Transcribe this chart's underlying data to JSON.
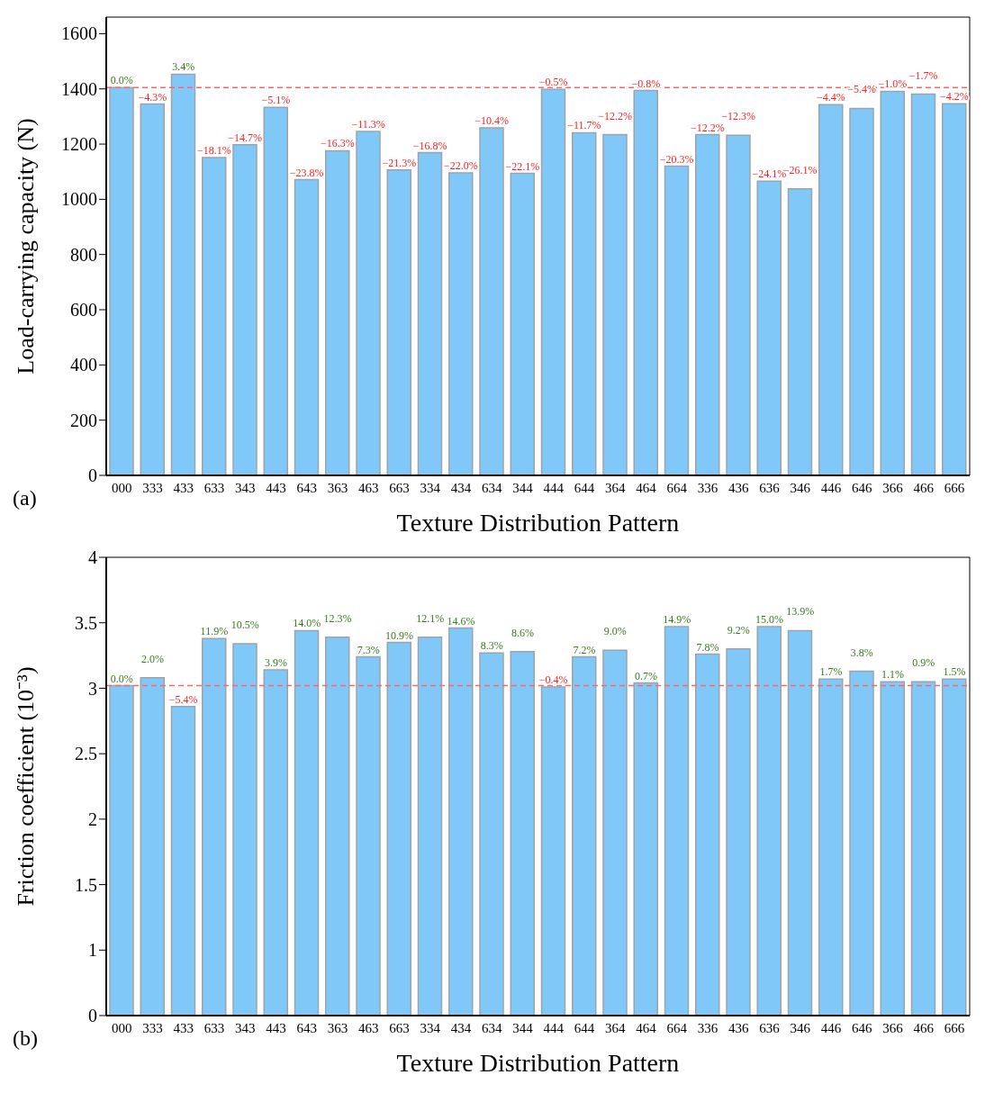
{
  "chart_data": [
    {
      "type": "bar",
      "xlabel": "Texture Distribution Pattern",
      "ylabel": "Load-carrying capacity (N)",
      "categories": [
        "000",
        "333",
        "433",
        "633",
        "343",
        "443",
        "643",
        "363",
        "463",
        "663",
        "334",
        "434",
        "634",
        "344",
        "444",
        "644",
        "364",
        "464",
        "664",
        "336",
        "436",
        "636",
        "346",
        "446",
        "646",
        "366",
        "466",
        "666"
      ],
      "series": [
        {
          "color": "#80c8f8",
          "values": [
            1405,
            1345,
            1453,
            1151,
            1198,
            1333,
            1071,
            1176,
            1246,
            1106,
            1169,
            1096,
            1259,
            1094,
            1398,
            1241,
            1234,
            1394,
            1120,
            1234,
            1232,
            1066,
            1038,
            1343,
            1329,
            1391,
            1381,
            1346
          ]
        }
      ],
      "ylim": [
        0,
        1660
      ],
      "yticks": [
        0,
        200,
        400,
        600,
        800,
        1000,
        1200,
        1400,
        1600
      ],
      "ref_lines": [
        {
          "axis": "y",
          "value": 1405,
          "color": "#ff6666",
          "line_style": "dashed"
        }
      ],
      "annotations": [
        "(a)",
        {
          "text": "0.0%",
          "x": "000",
          "y": 1405
        },
        {
          "text": "−4.3%",
          "x": "333",
          "y": 1345
        },
        {
          "text": "3.4%",
          "x": "433",
          "y": 1453
        },
        {
          "text": "−18.1%",
          "x": "633",
          "y": 1151
        },
        {
          "text": "−14.7%",
          "x": "343",
          "y": 1198
        },
        {
          "text": "−5.1%",
          "x": "443",
          "y": 1333
        },
        {
          "text": "−23.8%",
          "x": "643",
          "y": 1071
        },
        {
          "text": "−16.3%",
          "x": "363",
          "y": 1176
        },
        {
          "text": "−11.3%",
          "x": "463",
          "y": 1246
        },
        {
          "text": "−21.3%",
          "x": "663",
          "y": 1106
        },
        {
          "text": "−16.8%",
          "x": "334",
          "y": 1169
        },
        {
          "text": "−22.0%",
          "x": "434",
          "y": 1096
        },
        {
          "text": "−10.4%",
          "x": "634",
          "y": 1259
        },
        {
          "text": "−22.1%",
          "x": "344",
          "y": 1094
        },
        {
          "text": "−0.5%",
          "x": "444",
          "y": 1398
        },
        {
          "text": "−11.7%",
          "x": "644",
          "y": 1241
        },
        {
          "text": "−12.2%",
          "x": "364",
          "y": 1234
        },
        {
          "text": "−0.8%",
          "x": "464",
          "y": 1394
        },
        {
          "text": "−20.3%",
          "x": "664",
          "y": 1120
        },
        {
          "text": "−12.2%",
          "x": "336",
          "y": 1234
        },
        {
          "text": "−12.3%",
          "x": "436",
          "y": 1232
        },
        {
          "text": "−24.1%",
          "x": "636",
          "y": 1066
        },
        {
          "text": "−26.1%",
          "x": "346",
          "y": 1038
        },
        {
          "text": "−4.4%",
          "x": "446",
          "y": 1343
        },
        {
          "text": "−5.4%",
          "x": "646",
          "y": 1329
        },
        {
          "text": "−1.0%",
          "x": "366",
          "y": 1391
        },
        {
          "text": "−1.7%",
          "x": "466",
          "y": 1381
        },
        {
          "text": "−4.2%",
          "x": "666",
          "y": 1346
        }
      ],
      "grid": false,
      "legend": false
    },
    {
      "type": "bar",
      "xlabel": "Texture Distribution Pattern",
      "ylabel": "Friction coefficient (10⁻³)",
      "categories": [
        "000",
        "333",
        "433",
        "633",
        "343",
        "443",
        "643",
        "363",
        "463",
        "663",
        "334",
        "434",
        "634",
        "344",
        "444",
        "644",
        "364",
        "464",
        "664",
        "336",
        "436",
        "636",
        "346",
        "446",
        "646",
        "366",
        "466",
        "666"
      ],
      "series": [
        {
          "color": "#80c8f8",
          "values": [
            3.02,
            3.08,
            2.86,
            3.38,
            3.34,
            3.14,
            3.44,
            3.39,
            3.24,
            3.35,
            3.39,
            3.46,
            3.27,
            3.28,
            3.01,
            3.24,
            3.29,
            3.04,
            3.47,
            3.26,
            3.3,
            3.47,
            3.44,
            3.07,
            3.13,
            3.05,
            3.05,
            3.07
          ]
        }
      ],
      "ylim": [
        0.5,
        4.0
      ],
      "yticks": [
        {
          "value": 0.5,
          "label": "0"
        },
        1.0,
        1.5,
        2.0,
        2.5,
        3.0,
        3.5,
        4.0
      ],
      "ref_lines": [
        {
          "axis": "y",
          "value": 3.02,
          "color": "#ff6666",
          "line_style": "dashed"
        }
      ],
      "annotations": [
        "(b)",
        {
          "text": "0.0%",
          "x": "000",
          "y": 3.02
        },
        {
          "text": "2.0%",
          "x": "333",
          "y": 3.08
        },
        {
          "text": "−5.4%",
          "x": "433",
          "y": 2.86
        },
        {
          "text": "11.9%",
          "x": "633",
          "y": 3.38
        },
        {
          "text": "10.5%",
          "x": "343",
          "y": 3.34
        },
        {
          "text": "3.9%",
          "x": "443",
          "y": 3.14
        },
        {
          "text": "14.0%",
          "x": "643",
          "y": 3.44
        },
        {
          "text": "12.3%",
          "x": "363",
          "y": 3.39
        },
        {
          "text": "7.3%",
          "x": "463",
          "y": 3.24
        },
        {
          "text": "10.9%",
          "x": "663",
          "y": 3.35
        },
        {
          "text": "12.1%",
          "x": "334",
          "y": 3.39
        },
        {
          "text": "14.6%",
          "x": "434",
          "y": 3.46
        },
        {
          "text": "8.3%",
          "x": "634",
          "y": 3.27
        },
        {
          "text": "8.6%",
          "x": "344",
          "y": 3.28
        },
        {
          "text": "−0.4%",
          "x": "444",
          "y": 3.01
        },
        {
          "text": "7.2%",
          "x": "644",
          "y": 3.24
        },
        {
          "text": "9.0%",
          "x": "364",
          "y": 3.29
        },
        {
          "text": "0.7%",
          "x": "464",
          "y": 3.04
        },
        {
          "text": "14.9%",
          "x": "664",
          "y": 3.47
        },
        {
          "text": "7.8%",
          "x": "336",
          "y": 3.26
        },
        {
          "text": "9.2%",
          "x": "436",
          "y": 3.3
        },
        {
          "text": "15.0%",
          "x": "636",
          "y": 3.47
        },
        {
          "text": "13.9%",
          "x": "346",
          "y": 3.44
        },
        {
          "text": "1.7%",
          "x": "446",
          "y": 3.07
        },
        {
          "text": "3.8%",
          "x": "646",
          "y": 3.13
        },
        {
          "text": "1.1%",
          "x": "366",
          "y": 3.05
        },
        {
          "text": "0.9%",
          "x": "466",
          "y": 3.05
        },
        {
          "text": "1.5%",
          "x": "666",
          "y": 3.07
        }
      ],
      "grid": false,
      "legend": false
    }
  ]
}
